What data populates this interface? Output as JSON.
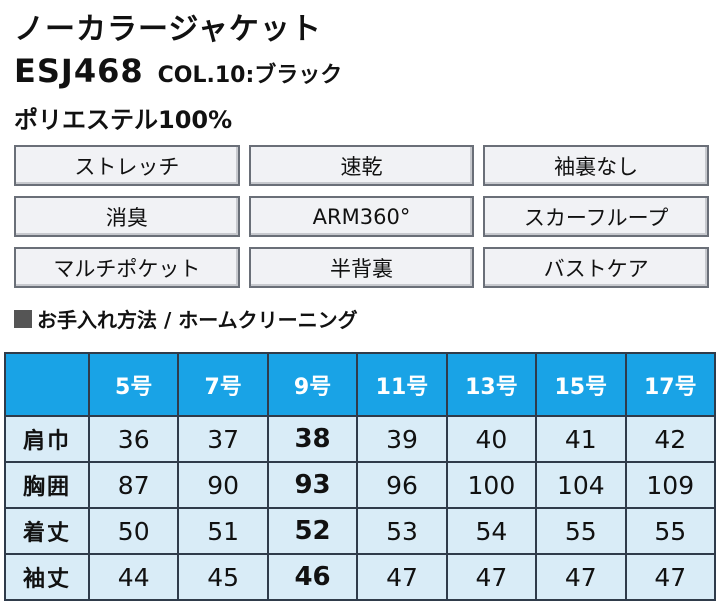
{
  "product": {
    "title": "ノーカラージャケット",
    "code": "ESJ468",
    "color": "COL.10:ブラック",
    "material": "ポリエステル100%"
  },
  "features": [
    "ストレッチ",
    "速乾",
    "袖裏なし",
    "消臭",
    "ARM360°",
    "スカーフループ",
    "マルチポケット",
    "半背裏",
    "バストケア"
  ],
  "care": {
    "label": "お手入れ方法 / ホームクリーニング"
  },
  "size_table": {
    "headers": [
      "5号",
      "7号",
      "9号",
      "11号",
      "13号",
      "15号",
      "17号"
    ],
    "highlight_column": "9号",
    "rows": [
      {
        "label": "肩巾",
        "values": [
          "36",
          "37",
          "38",
          "39",
          "40",
          "41",
          "42"
        ]
      },
      {
        "label": "胸囲",
        "values": [
          "87",
          "90",
          "93",
          "96",
          "100",
          "104",
          "109"
        ]
      },
      {
        "label": "着丈",
        "values": [
          "50",
          "51",
          "52",
          "53",
          "54",
          "55",
          "55"
        ]
      },
      {
        "label": "袖丈",
        "values": [
          "44",
          "45",
          "46",
          "47",
          "47",
          "47",
          "47"
        ]
      }
    ]
  },
  "colors": {
    "header_bg": "#19a3e6",
    "body_bg": "#d9ecf7",
    "feature_bg": "#f1f2f5"
  }
}
